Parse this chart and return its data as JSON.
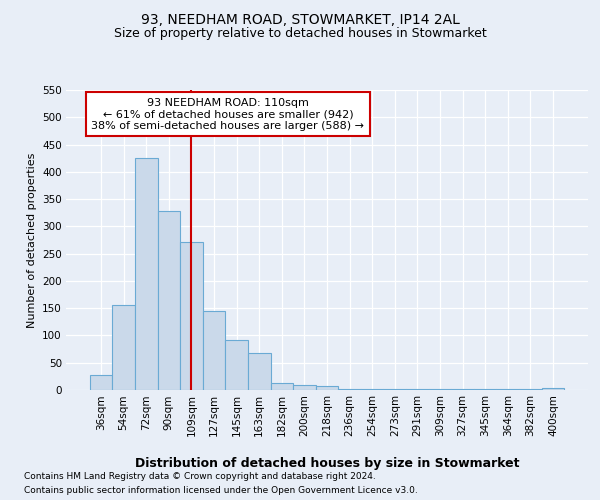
{
  "title1": "93, NEEDHAM ROAD, STOWMARKET, IP14 2AL",
  "title2": "Size of property relative to detached houses in Stowmarket",
  "xlabel": "Distribution of detached houses by size in Stowmarket",
  "ylabel": "Number of detached properties",
  "categories": [
    "36sqm",
    "54sqm",
    "72sqm",
    "90sqm",
    "109sqm",
    "127sqm",
    "145sqm",
    "163sqm",
    "182sqm",
    "200sqm",
    "218sqm",
    "236sqm",
    "254sqm",
    "273sqm",
    "291sqm",
    "309sqm",
    "327sqm",
    "345sqm",
    "364sqm",
    "382sqm",
    "400sqm"
  ],
  "values": [
    28,
    155,
    425,
    328,
    272,
    145,
    92,
    68,
    12,
    10,
    8,
    2,
    2,
    2,
    1,
    1,
    1,
    1,
    1,
    1,
    3
  ],
  "bar_color": "#cad9ea",
  "bar_edge_color": "#6aaad4",
  "property_line_index": 4,
  "property_line_color": "#cc0000",
  "ylim_max": 550,
  "yticks": [
    0,
    50,
    100,
    150,
    200,
    250,
    300,
    350,
    400,
    450,
    500,
    550
  ],
  "annotation_title": "93 NEEDHAM ROAD: 110sqm",
  "annotation_line1": "← 61% of detached houses are smaller (942)",
  "annotation_line2": "38% of semi-detached houses are larger (588) →",
  "annotation_box_color": "#ffffff",
  "annotation_box_edge": "#cc0000",
  "footnote1": "Contains HM Land Registry data © Crown copyright and database right 2024.",
  "footnote2": "Contains public sector information licensed under the Open Government Licence v3.0.",
  "bg_color": "#e8eef7",
  "grid_color": "#ffffff",
  "title1_fontsize": 10,
  "title2_fontsize": 9,
  "ylabel_fontsize": 8,
  "xlabel_fontsize": 9,
  "tick_fontsize": 7.5,
  "annotation_fontsize": 8,
  "footnote_fontsize": 6.5
}
